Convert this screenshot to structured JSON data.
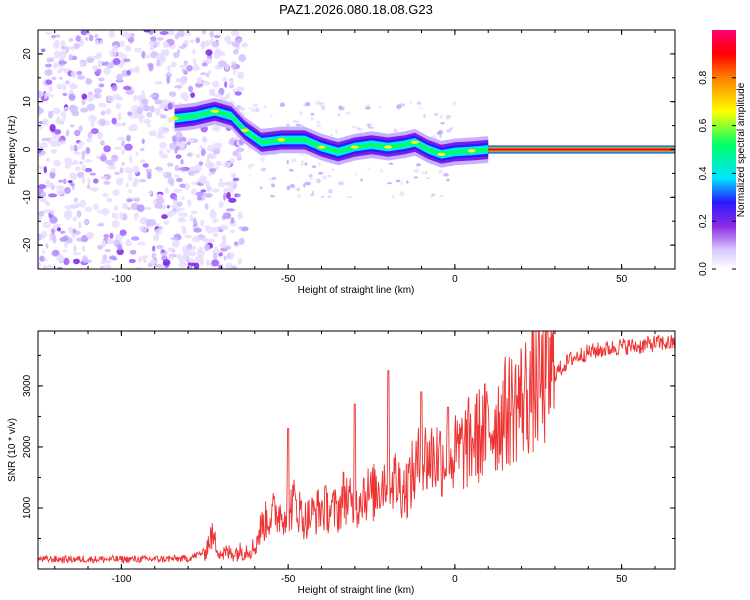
{
  "title": "PAZ1.2026.080.18.08.G23",
  "chart_data": [
    {
      "type": "heatmap",
      "title": "PAZ1.2026.080.18.08.G23",
      "xlabel": "Height of straight line (km)",
      "ylabel": "Frequency (Hz)",
      "xlim": [
        -125,
        66
      ],
      "ylim": [
        -25,
        25
      ],
      "xticks": [
        -100,
        -50,
        0,
        50
      ],
      "yticks": [
        -20,
        -10,
        0,
        10,
        20
      ],
      "ridge_points": [
        {
          "x": -84,
          "y": 6.5
        },
        {
          "x": -78,
          "y": 7
        },
        {
          "x": -72,
          "y": 8
        },
        {
          "x": -67,
          "y": 7
        },
        {
          "x": -63,
          "y": 4
        },
        {
          "x": -58,
          "y": 1.5
        },
        {
          "x": -52,
          "y": 2
        },
        {
          "x": -45,
          "y": 2
        },
        {
          "x": -40,
          "y": 0.5
        },
        {
          "x": -35,
          "y": -0.5
        },
        {
          "x": -30,
          "y": 0.5
        },
        {
          "x": -25,
          "y": 1
        },
        {
          "x": -20,
          "y": 0.5
        },
        {
          "x": -15,
          "y": 1
        },
        {
          "x": -12,
          "y": 1.5
        },
        {
          "x": -8,
          "y": 0
        },
        {
          "x": -4,
          "y": -1
        },
        {
          "x": 0,
          "y": -0.5
        },
        {
          "x": 5,
          "y": -0.3
        },
        {
          "x": 10,
          "y": 0
        }
      ],
      "flat_tone": {
        "x_start": 10,
        "x_end": 66,
        "y": 0
      },
      "colorbar": {
        "label": "Normalized spectral amplitude",
        "range": [
          0,
          1
        ],
        "ticks": [
          "0.0",
          "0.2",
          "0.4",
          "0.6",
          "0.8"
        ],
        "tick_values": [
          0,
          0.2,
          0.4,
          0.6,
          0.8
        ]
      }
    },
    {
      "type": "line",
      "xlabel": "Height of straight line (km)",
      "ylabel": "SNR (10 * v/v)",
      "xlim": [
        -125,
        66
      ],
      "ylim": [
        0,
        3900
      ],
      "xticks": [
        -100,
        -50,
        0,
        50
      ],
      "yticks": [
        1000,
        2000,
        3000
      ],
      "color": "#ee3333",
      "series": [
        {
          "name": "SNR",
          "x": [
            -125,
            -110,
            -95,
            -80,
            -75,
            -73,
            -70,
            -65,
            -60,
            -58,
            -55,
            -50,
            -48,
            -45,
            -40,
            -35,
            -33,
            -30,
            -28,
            -25,
            -20,
            -15,
            -10,
            -5,
            0,
            5,
            10,
            15,
            20,
            25,
            30,
            35,
            40,
            45,
            50,
            55,
            60,
            66
          ],
          "values": [
            160,
            160,
            160,
            170,
            280,
            550,
            250,
            280,
            350,
            700,
            900,
            950,
            1100,
            800,
            1000,
            950,
            1250,
            900,
            1300,
            1200,
            1550,
            1300,
            1800,
            1850,
            1850,
            2100,
            2300,
            2550,
            2800,
            3000,
            3200,
            3450,
            3550,
            3600,
            3650,
            3650,
            3700,
            3700
          ]
        }
      ],
      "spikes": [
        {
          "x": -50,
          "y": 2300
        },
        {
          "x": -30,
          "y": 2700
        },
        {
          "x": -20,
          "y": 3250
        },
        {
          "x": -10,
          "y": 2900
        },
        {
          "x": -2,
          "y": 2650
        }
      ]
    }
  ]
}
